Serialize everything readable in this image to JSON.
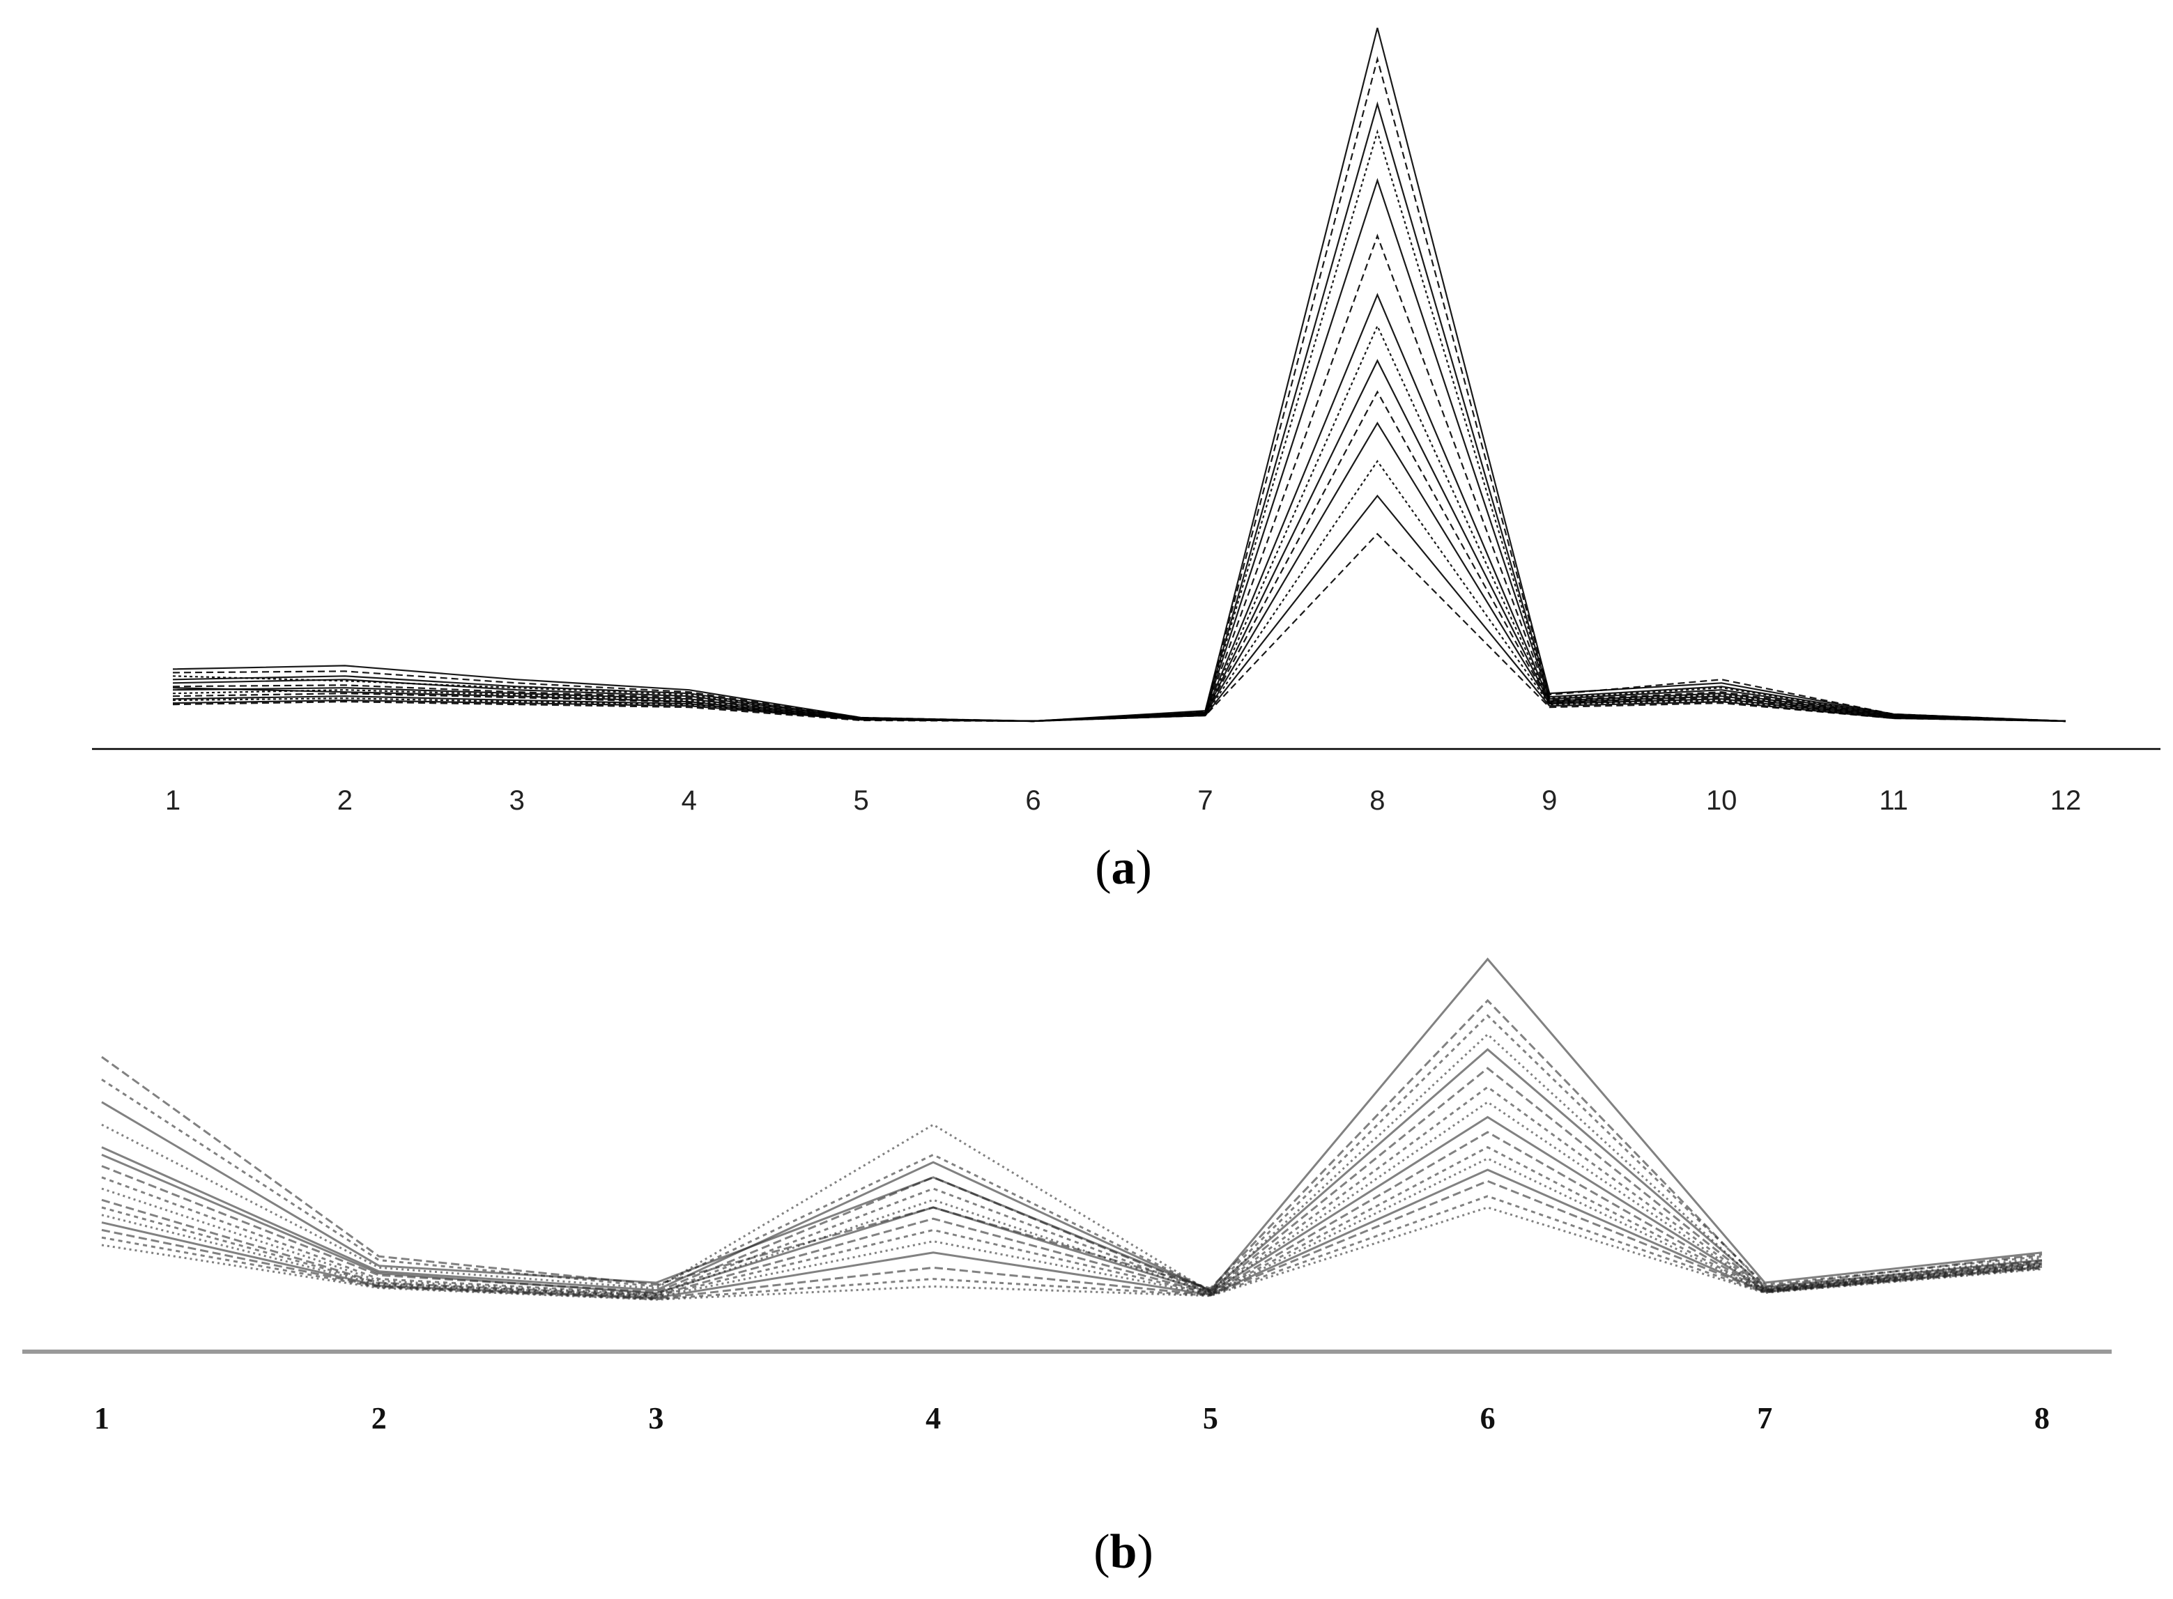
{
  "chart_data": [
    {
      "type": "line",
      "panel_label": "a",
      "categories": [
        "1",
        "2",
        "3",
        "4",
        "5",
        "6",
        "7",
        "8",
        "9",
        "10",
        "11",
        "12"
      ],
      "title": "",
      "xlabel": "",
      "ylabel": "",
      "ylim": [
        0,
        1
      ],
      "grid": false,
      "legend": "none",
      "series_color": "#000000",
      "series": [
        {
          "values": [
            0.075,
            0.08,
            0.06,
            0.045,
            0.005,
            0.0,
            0.015,
            1.0,
            0.04,
            0.055,
            0.01,
            0.0
          ]
        },
        {
          "values": [
            0.07,
            0.072,
            0.055,
            0.042,
            0.005,
            0.0,
            0.014,
            0.955,
            0.038,
            0.06,
            0.01,
            0.0
          ]
        },
        {
          "values": [
            0.06,
            0.065,
            0.05,
            0.04,
            0.004,
            0.0,
            0.013,
            0.89,
            0.035,
            0.05,
            0.009,
            0.0
          ]
        },
        {
          "values": [
            0.065,
            0.058,
            0.048,
            0.038,
            0.004,
            0.0,
            0.012,
            0.85,
            0.033,
            0.048,
            0.009,
            0.0
          ]
        },
        {
          "values": [
            0.055,
            0.06,
            0.045,
            0.036,
            0.004,
            0.0,
            0.012,
            0.78,
            0.032,
            0.045,
            0.008,
            0.0
          ]
        },
        {
          "values": [
            0.05,
            0.052,
            0.042,
            0.034,
            0.003,
            0.0,
            0.011,
            0.7,
            0.03,
            0.042,
            0.008,
            0.0
          ]
        },
        {
          "values": [
            0.045,
            0.048,
            0.04,
            0.032,
            0.003,
            0.0,
            0.011,
            0.615,
            0.029,
            0.04,
            0.007,
            0.0
          ]
        },
        {
          "values": [
            0.04,
            0.045,
            0.038,
            0.03,
            0.003,
            0.0,
            0.01,
            0.57,
            0.028,
            0.038,
            0.007,
            0.0
          ]
        },
        {
          "values": [
            0.048,
            0.042,
            0.036,
            0.028,
            0.003,
            0.0,
            0.01,
            0.52,
            0.027,
            0.036,
            0.006,
            0.0
          ]
        },
        {
          "values": [
            0.036,
            0.04,
            0.034,
            0.027,
            0.002,
            0.0,
            0.01,
            0.475,
            0.026,
            0.034,
            0.006,
            0.0
          ]
        },
        {
          "values": [
            0.032,
            0.036,
            0.03,
            0.025,
            0.002,
            0.0,
            0.009,
            0.43,
            0.025,
            0.032,
            0.005,
            0.0
          ]
        },
        {
          "values": [
            0.03,
            0.033,
            0.028,
            0.024,
            0.002,
            0.0,
            0.009,
            0.375,
            0.024,
            0.03,
            0.005,
            0.0
          ]
        },
        {
          "values": [
            0.026,
            0.03,
            0.026,
            0.022,
            0.002,
            0.0,
            0.008,
            0.325,
            0.022,
            0.028,
            0.004,
            0.0
          ]
        },
        {
          "values": [
            0.024,
            0.028,
            0.024,
            0.02,
            0.001,
            0.0,
            0.008,
            0.27,
            0.02,
            0.026,
            0.004,
            0.0
          ]
        }
      ]
    },
    {
      "type": "line",
      "panel_label": "b",
      "categories": [
        "1",
        "2",
        "3",
        "4",
        "5",
        "6",
        "7",
        "8"
      ],
      "title": "",
      "xlabel": "",
      "ylabel": "",
      "ylim": [
        0,
        1
      ],
      "grid": false,
      "legend": "none",
      "series_color": "#1a1a1a",
      "series": [
        {
          "values": [
            0.58,
            0.145,
            0.1,
            0.38,
            0.08,
            0.96,
            0.1,
            0.18
          ]
        },
        {
          "values": [
            0.7,
            0.17,
            0.095,
            0.3,
            0.085,
            0.85,
            0.09,
            0.175
          ]
        },
        {
          "values": [
            0.64,
            0.16,
            0.09,
            0.44,
            0.08,
            0.81,
            0.095,
            0.17
          ]
        },
        {
          "values": [
            0.52,
            0.14,
            0.085,
            0.52,
            0.075,
            0.76,
            0.085,
            0.165
          ]
        },
        {
          "values": [
            0.46,
            0.13,
            0.08,
            0.42,
            0.078,
            0.72,
            0.088,
            0.16
          ]
        },
        {
          "values": [
            0.41,
            0.12,
            0.075,
            0.38,
            0.076,
            0.67,
            0.084,
            0.158
          ]
        },
        {
          "values": [
            0.38,
            0.11,
            0.07,
            0.35,
            0.074,
            0.62,
            0.082,
            0.155
          ]
        },
        {
          "values": [
            0.35,
            0.105,
            0.068,
            0.32,
            0.072,
            0.58,
            0.08,
            0.15
          ]
        },
        {
          "values": [
            0.44,
            0.125,
            0.072,
            0.3,
            0.074,
            0.54,
            0.081,
            0.152
          ]
        },
        {
          "values": [
            0.32,
            0.1,
            0.066,
            0.27,
            0.071,
            0.5,
            0.079,
            0.148
          ]
        },
        {
          "values": [
            0.3,
            0.098,
            0.064,
            0.24,
            0.07,
            0.46,
            0.078,
            0.146
          ]
        },
        {
          "values": [
            0.28,
            0.095,
            0.062,
            0.21,
            0.069,
            0.43,
            0.077,
            0.144
          ]
        },
        {
          "values": [
            0.26,
            0.092,
            0.06,
            0.18,
            0.068,
            0.4,
            0.076,
            0.142
          ]
        },
        {
          "values": [
            0.24,
            0.09,
            0.058,
            0.14,
            0.067,
            0.37,
            0.075,
            0.14
          ]
        },
        {
          "values": [
            0.22,
            0.088,
            0.056,
            0.11,
            0.066,
            0.33,
            0.074,
            0.138
          ]
        },
        {
          "values": [
            0.2,
            0.086,
            0.055,
            0.09,
            0.065,
            0.3,
            0.073,
            0.136
          ]
        }
      ]
    }
  ]
}
